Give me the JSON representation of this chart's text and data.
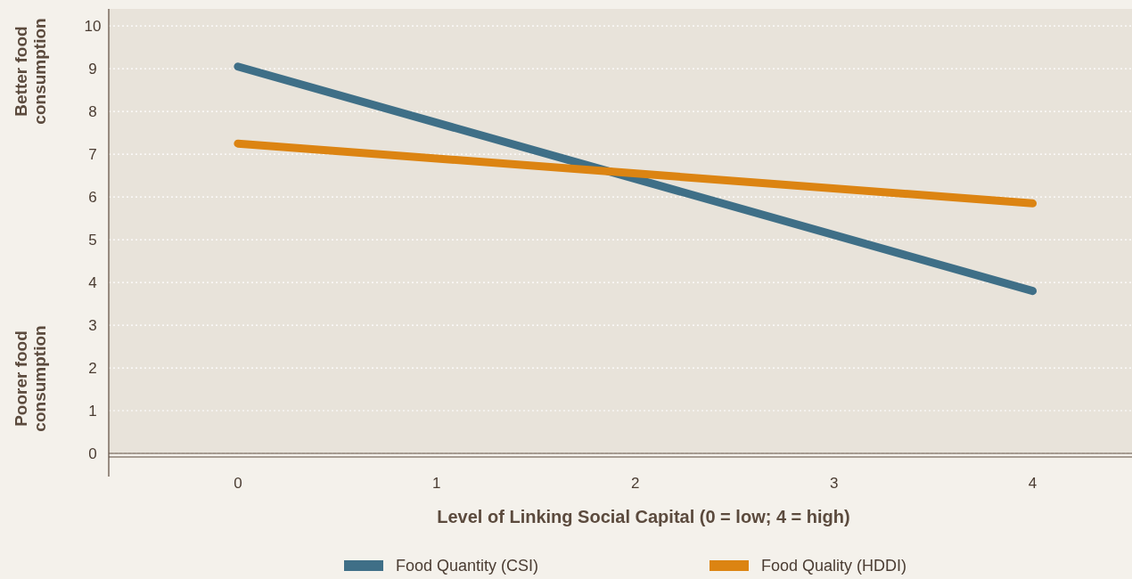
{
  "chart_data": {
    "type": "line",
    "xlabel": "Level of Linking Social Capital (0 = low; 4 = high)",
    "annotations": [
      "Better food consumption",
      "Poorer food consumption"
    ],
    "x": [
      0,
      4
    ],
    "series": [
      {
        "name": "Food Quantity (CSI)",
        "color": "#3f6f87",
        "values": [
          9.05,
          3.8
        ]
      },
      {
        "name": "Food Quality (HDDI)",
        "color": "#dc8412",
        "values": [
          7.25,
          5.85
        ]
      }
    ],
    "xlim": [
      -0.65,
      4.5
    ],
    "xticks": [
      0,
      1,
      2,
      3,
      4
    ],
    "ylim": [
      0,
      10.4
    ],
    "yticks": [
      0,
      1,
      2,
      3,
      4,
      5,
      6,
      7,
      8,
      9,
      10
    ],
    "grid": "y",
    "legend": "bottom",
    "line_style": "solid"
  }
}
